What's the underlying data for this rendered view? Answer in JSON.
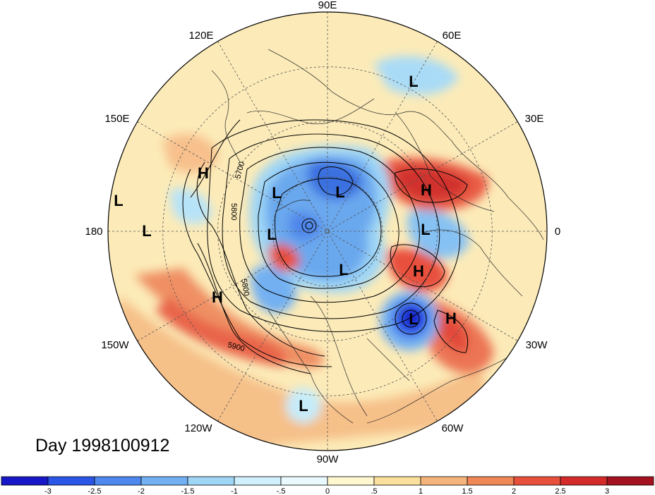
{
  "map": {
    "projection": "north polar stereographic",
    "longitude_labels": [
      "90E",
      "60E",
      "30E",
      "0",
      "30W",
      "60W",
      "90W",
      "120W",
      "150W",
      "180",
      "150E",
      "120E"
    ],
    "contour_labels": [
      "5700",
      "5800",
      "5800",
      "5900"
    ],
    "pressure_centers": [
      {
        "type": "L",
        "region": "northern Eurasia"
      },
      {
        "type": "L",
        "region": "western Pacific"
      },
      {
        "type": "L",
        "region": "Siberia"
      },
      {
        "type": "L",
        "region": "Arctic"
      },
      {
        "type": "L",
        "region": "Arctic"
      },
      {
        "type": "L",
        "region": "Arctic"
      },
      {
        "type": "L",
        "region": "Scandinavia"
      },
      {
        "type": "L",
        "region": "Canadian Arctic"
      },
      {
        "type": "L",
        "region": "North Atlantic"
      },
      {
        "type": "L",
        "region": "eastern Pacific"
      },
      {
        "type": "H",
        "region": "northwest Pacific"
      },
      {
        "type": "H",
        "region": "Eastern Europe"
      },
      {
        "type": "H",
        "region": "North Atlantic"
      },
      {
        "type": "H",
        "region": "northeast Pacific"
      },
      {
        "type": "H",
        "region": "subtropical Atlantic"
      }
    ]
  },
  "title": "Day 1998100912",
  "colorbar": {
    "ticks": [
      "-3",
      "-2.5",
      "-2",
      "-1.5",
      "-1",
      "-.5",
      "0",
      ".5",
      "1",
      "1.5",
      "2",
      "2.5",
      "3"
    ],
    "colors": [
      "#1717c8",
      "#2b55e6",
      "#4e88ee",
      "#72b0f2",
      "#9fd6f6",
      "#d0f0fb",
      "#e9f9fe",
      "#fff7cf",
      "#fbdf9c",
      "#f6b47d",
      "#ef8757",
      "#e8503c",
      "#d42a2a",
      "#a3121e"
    ]
  }
}
